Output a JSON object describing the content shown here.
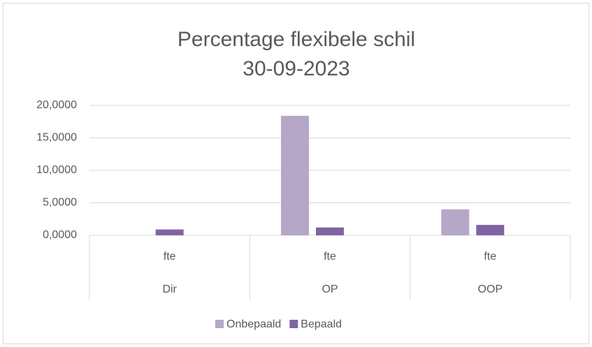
{
  "chart_data": {
    "type": "bar",
    "title": [
      "Percentage flexibele schil",
      "30-09-2023"
    ],
    "categories": [
      "fte",
      "fte",
      "fte"
    ],
    "groups": [
      "Dir",
      "OP",
      "OOP"
    ],
    "series": [
      {
        "name": "Onbepaald",
        "color": "#b4a7c8",
        "values": [
          0,
          18.4,
          4.0
        ]
      },
      {
        "name": "Bepaald",
        "color": "#8064a2",
        "values": [
          0.9,
          1.2,
          1.6
        ]
      }
    ],
    "ylim": [
      0,
      20
    ],
    "yticks": [
      {
        "value": 0,
        "label": "0,0000"
      },
      {
        "value": 5,
        "label": "5,0000"
      },
      {
        "value": 10,
        "label": "10,0000"
      },
      {
        "value": 15,
        "label": "15,0000"
      },
      {
        "value": 20,
        "label": "20,0000"
      }
    ],
    "grid": true,
    "legend": "bottom"
  }
}
